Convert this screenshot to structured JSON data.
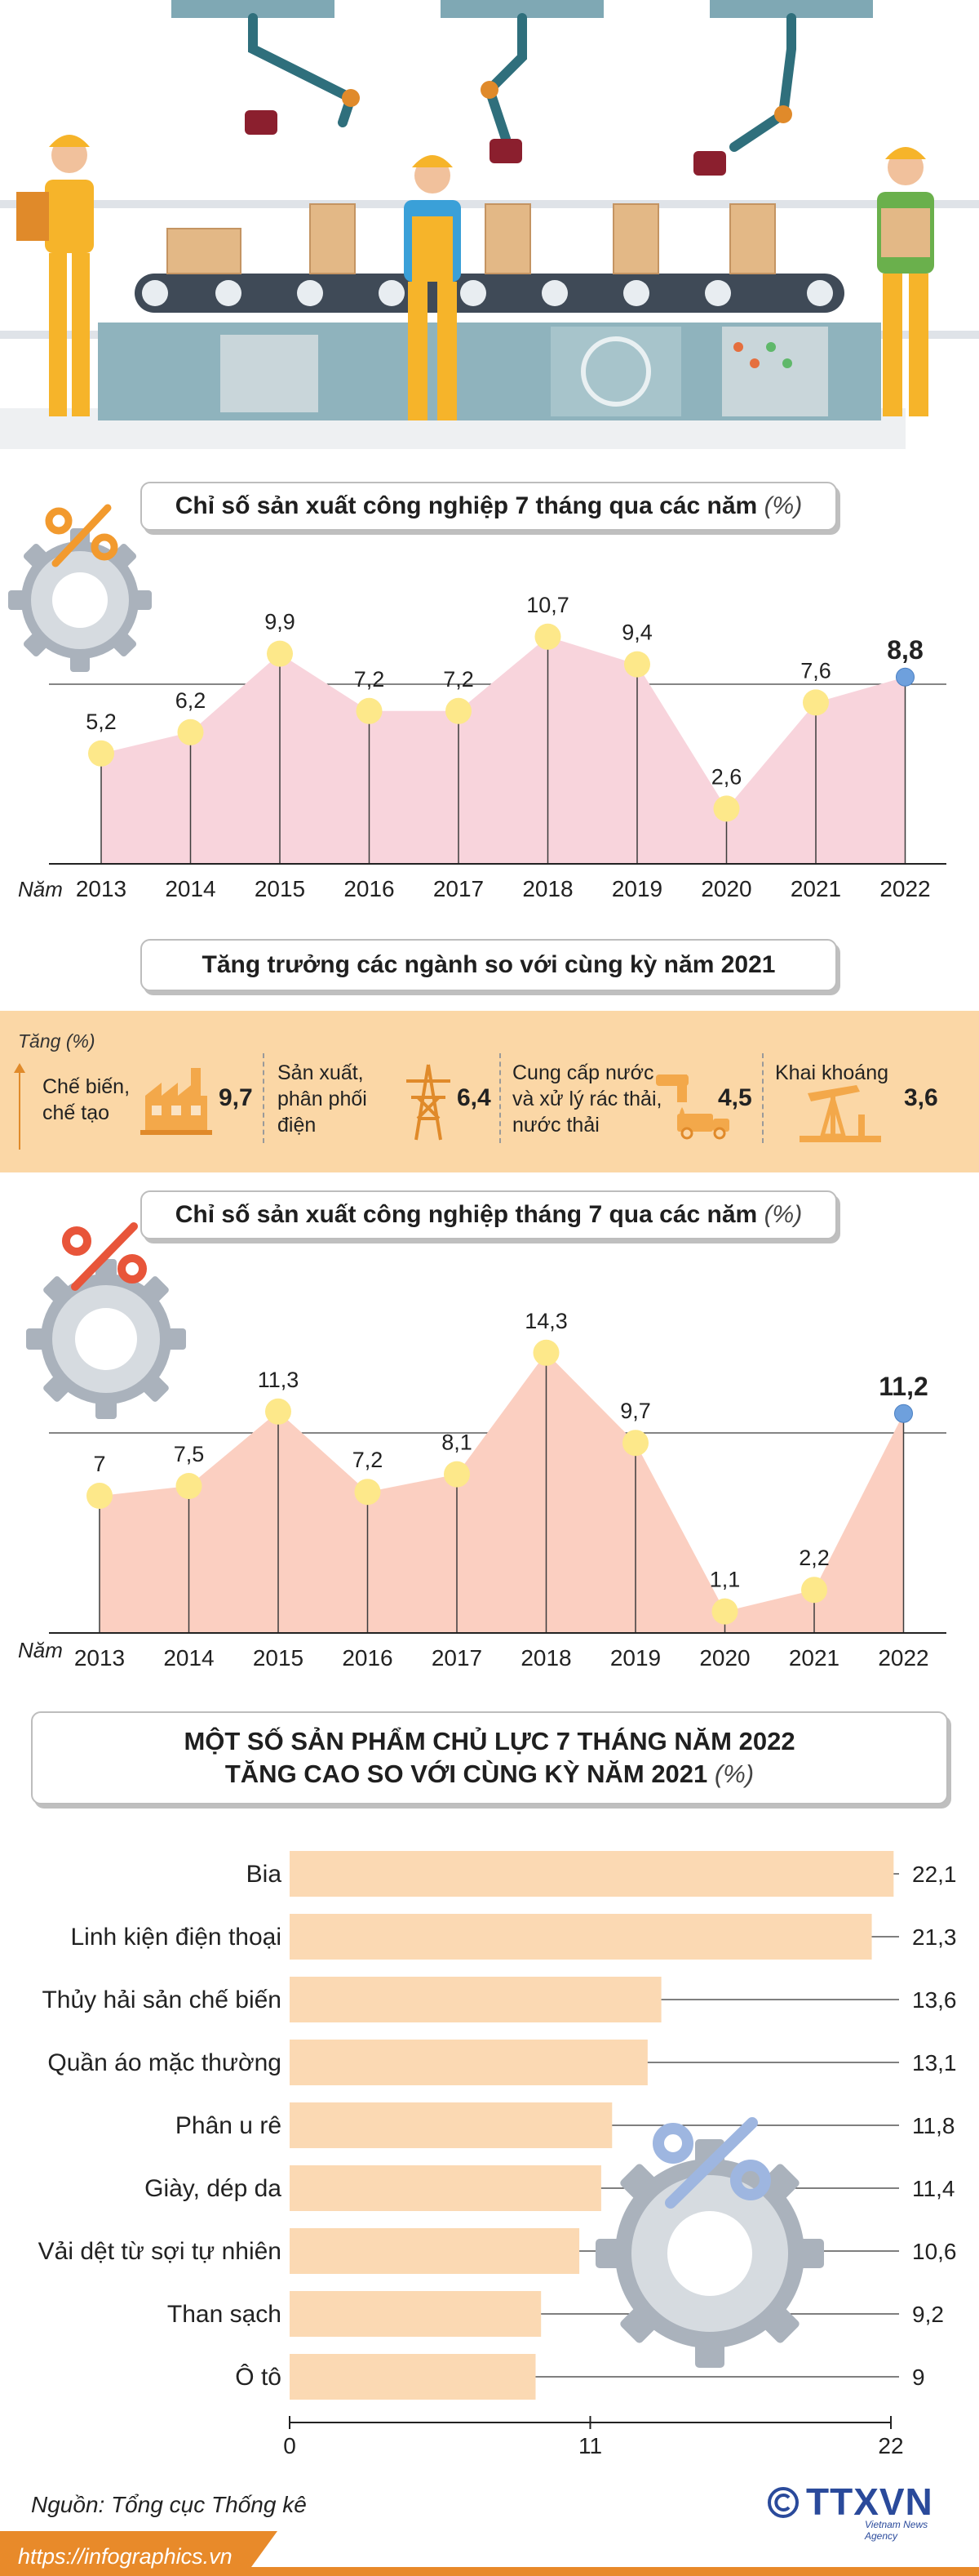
{
  "colors": {
    "area1": "#f8d4dc",
    "area2": "#fbcfc1",
    "marker": "#fde88a",
    "highlight": "#6ea0dd",
    "band": "#fbd7a6",
    "bar": "#fbd9b3",
    "footer": "#e88a2a"
  },
  "header": {
    "illustration": "factory-assembly-line-illustration",
    "watermark": "depositphotos"
  },
  "section_growth": {
    "title": "Tăng trưởng các ngành so với cùng kỳ năm 2021",
    "axis_label": "Tăng (%)",
    "sectors": [
      {
        "name_line1": "Chế biến,",
        "name_line2": "chế tạo",
        "name_line3": "",
        "value": "9,7",
        "icon": "factory-icon"
      },
      {
        "name_line1": "Sản xuất,",
        "name_line2": "phân phối",
        "name_line3": "điện",
        "value": "6,4",
        "icon": "power-tower-icon"
      },
      {
        "name_line1": "Cung cấp nước",
        "name_line2": "và xử lý rác thải,",
        "name_line3": "nước thải",
        "value": "4,5",
        "icon": "water-tap-truck-icon"
      },
      {
        "name_line1": "Khai khoáng",
        "name_line2": "",
        "name_line3": "",
        "value": "3,6",
        "icon": "oil-pump-icon"
      }
    ]
  },
  "footer": {
    "source": "Nguồn: Tổng cục Thống kê",
    "url": "https://infographics.vn",
    "logo_text": "TTXVN",
    "logo_subtext": "Vietnam News Agency"
  },
  "chart_data": [
    {
      "type": "area",
      "title": "Chỉ số sản xuất công nghiệp 7 tháng qua các năm",
      "unit": "(%)",
      "xlabel": "Năm",
      "categories": [
        "2013",
        "2014",
        "2015",
        "2016",
        "2017",
        "2018",
        "2019",
        "2020",
        "2021",
        "2022"
      ],
      "values": [
        5.2,
        6.2,
        9.9,
        7.2,
        7.2,
        10.7,
        9.4,
        2.6,
        7.6,
        8.8
      ],
      "value_labels": [
        "5,2",
        "6,2",
        "9,9",
        "7,2",
        "7,2",
        "10,7",
        "9,4",
        "2,6",
        "7,6",
        "8,8"
      ],
      "highlight": "2022",
      "ylim": [
        0,
        13
      ]
    },
    {
      "type": "area",
      "title": "Chỉ số sản xuất công nghiệp tháng 7 qua các năm",
      "unit": "(%)",
      "xlabel": "Năm",
      "categories": [
        "2013",
        "2014",
        "2015",
        "2016",
        "2017",
        "2018",
        "2019",
        "2020",
        "2021",
        "2022"
      ],
      "values": [
        7,
        7.5,
        11.3,
        7.2,
        8.1,
        14.3,
        9.7,
        1.1,
        2.2,
        11.2
      ],
      "value_labels": [
        "7",
        "7,5",
        "11,3",
        "7,2",
        "8,1",
        "14,3",
        "9,7",
        "1,1",
        "2,2",
        "11,2"
      ],
      "highlight": "2022",
      "ylim": [
        0,
        16
      ]
    },
    {
      "type": "bar",
      "orientation": "horizontal",
      "title_line1": "MỘT SỐ SẢN PHẨM CHỦ LỰC 7 THÁNG NĂM 2022",
      "title_line2": "TĂNG CAO SO VỚI CÙNG KỲ NĂM 2021",
      "unit": "(%)",
      "categories": [
        "Bia",
        "Linh kiện điện thoại",
        "Thủy hải sản chế biến",
        "Quần áo mặc thường",
        "Phân u rê",
        "Giày, dép da",
        "Vải dệt từ sợi tự nhiên",
        "Than sạch",
        "Ô tô"
      ],
      "values": [
        22.1,
        21.3,
        13.6,
        13.1,
        11.8,
        11.4,
        10.6,
        9.2,
        9
      ],
      "value_labels": [
        "22,1",
        "21,3",
        "13,6",
        "13,1",
        "11,8",
        "11,4",
        "10,6",
        "9,2",
        "9"
      ],
      "xticks": [
        "0",
        "11",
        "22"
      ],
      "xlim": [
        0,
        22
      ]
    }
  ]
}
